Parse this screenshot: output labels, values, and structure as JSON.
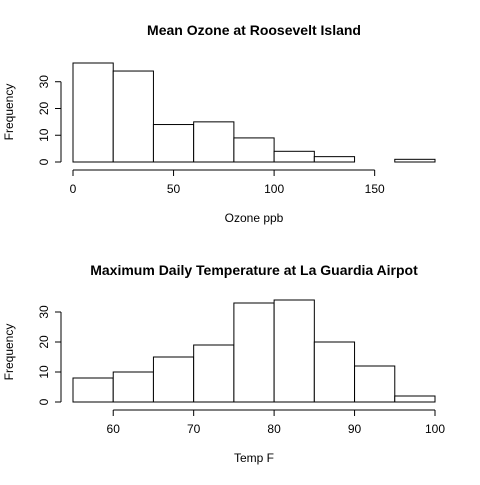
{
  "chart_data": [
    {
      "type": "bar",
      "subtype": "histogram",
      "title": "Mean Ozone at Roosevelt Island",
      "xlabel": "Ozone ppb",
      "ylabel": "Frequency",
      "bin_edges": [
        0,
        20,
        40,
        60,
        80,
        100,
        120,
        140,
        160,
        180
      ],
      "values": [
        37,
        34,
        14,
        15,
        9,
        4,
        2,
        0,
        1
      ],
      "xlim": [
        0,
        180
      ],
      "ylim": [
        0,
        37
      ],
      "x_ticks": [
        0,
        50,
        100,
        150
      ],
      "y_ticks": [
        0,
        10,
        20,
        30
      ],
      "grid": false,
      "legend": "none"
    },
    {
      "type": "bar",
      "subtype": "histogram",
      "title": "Maximum Daily Temperature at La Guardia Airpot",
      "xlabel": "Temp F",
      "ylabel": "Frequency",
      "bin_edges": [
        55,
        60,
        65,
        70,
        75,
        80,
        85,
        90,
        95,
        100
      ],
      "values": [
        8,
        10,
        15,
        19,
        33,
        34,
        20,
        12,
        2
      ],
      "xlim": [
        55,
        100
      ],
      "ylim": [
        0,
        34
      ],
      "x_ticks": [
        60,
        70,
        80,
        90,
        100
      ],
      "y_ticks": [
        0,
        10,
        20,
        30
      ],
      "grid": false,
      "legend": "none"
    }
  ]
}
